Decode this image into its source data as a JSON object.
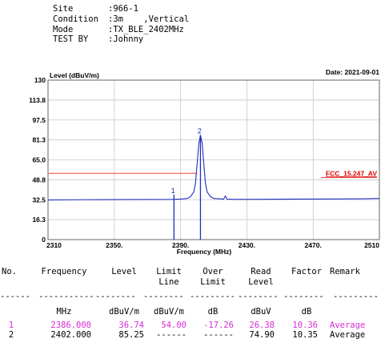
{
  "header": {
    "rows": [
      {
        "label": "Site",
        "value": ":966-1"
      },
      {
        "label": "Condition",
        "value": ":3m    ,Vertical"
      },
      {
        "label": "Mode",
        "value": ":TX_BLE_2402MHz"
      },
      {
        "label": "TEST BY",
        "value": ":Johnny"
      }
    ]
  },
  "chart_data": {
    "type": "line",
    "ylabel": "Level (dBuV/m)",
    "xlabel": "Frequency (MHz)",
    "date_label": "Date: 2021-09-01",
    "xlim": [
      2310,
      2510
    ],
    "ylim": [
      0,
      130
    ],
    "y_ticks": [
      "0",
      "16.3",
      "32.5",
      "48.8",
      "65.0",
      "81.3",
      "97.5",
      "113.8",
      "130"
    ],
    "y_tick_values": [
      0,
      16.3,
      32.5,
      48.8,
      65.0,
      81.3,
      97.5,
      113.8,
      130
    ],
    "x_ticks": [
      "2310",
      "2350.",
      "2390.",
      "2430.",
      "2470.",
      "2510"
    ],
    "x_tick_values": [
      2310,
      2350,
      2390,
      2430,
      2470,
      2510
    ],
    "grid": true,
    "limit_line": {
      "label": "FCC_15.247_AV",
      "value": 54.0,
      "x_start": 2310,
      "x_end": 2400,
      "color": "#f08080"
    },
    "series": [
      {
        "color": "#1f2fbf",
        "x": [
          2310,
          2330,
          2350,
          2370,
          2385,
          2390,
          2394,
          2396,
          2398,
          2399,
          2400,
          2401,
          2402,
          2403,
          2404,
          2405,
          2406,
          2408,
          2410,
          2416,
          2417,
          2418,
          2422,
          2440,
          2460,
          2480,
          2500,
          2510
        ],
        "y": [
          32.3,
          32.5,
          32.6,
          32.7,
          32.8,
          33.0,
          33.5,
          35.0,
          39.0,
          46.0,
          62.0,
          78.0,
          85.25,
          79.0,
          62.0,
          46.0,
          39.0,
          35.0,
          33.5,
          33.0,
          35.5,
          33.0,
          32.8,
          32.9,
          33.0,
          33.1,
          33.3,
          33.5
        ]
      }
    ],
    "markers": [
      {
        "label": "1",
        "x": 2386.0,
        "y": 36.74
      },
      {
        "label": "2",
        "x": 2402.0,
        "y": 85.25
      }
    ]
  },
  "table": {
    "headers": [
      [
        "No.",
        ""
      ],
      [
        "Frequency",
        ""
      ],
      [
        "Level",
        ""
      ],
      [
        "Limit",
        "Line"
      ],
      [
        "Over",
        "Limit"
      ],
      [
        "Read",
        "Level"
      ],
      [
        "Factor",
        ""
      ],
      [
        "Remark",
        ""
      ]
    ],
    "dashes": [
      "------",
      "-----------",
      "--------",
      "--------",
      "---------",
      "--------",
      "--------",
      "---------"
    ],
    "units": [
      "",
      "MHz",
      "dBuV/m",
      "dBuV/m",
      "dB",
      "dBuV",
      "dB",
      ""
    ],
    "rows": [
      [
        "1",
        "2386.000",
        "36.74",
        "54.00",
        "-17.26",
        "26.38",
        "10.36",
        "Average"
      ],
      [
        "2",
        "2402.000",
        "85.25",
        "------",
        "------",
        "74.90",
        "10.35",
        "Average"
      ]
    ],
    "highlight_color": "#d62cd6"
  }
}
